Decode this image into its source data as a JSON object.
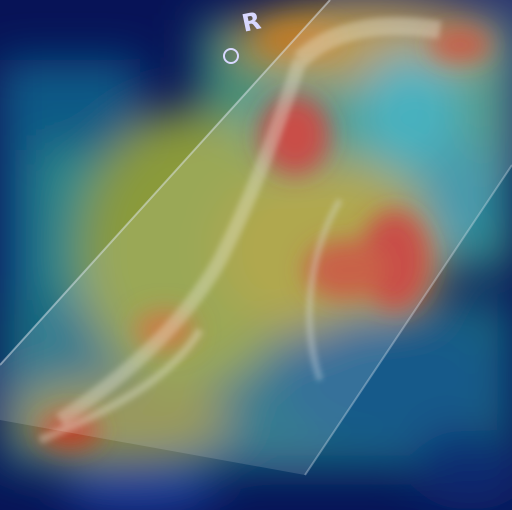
{
  "marker": {
    "label": "R"
  }
}
